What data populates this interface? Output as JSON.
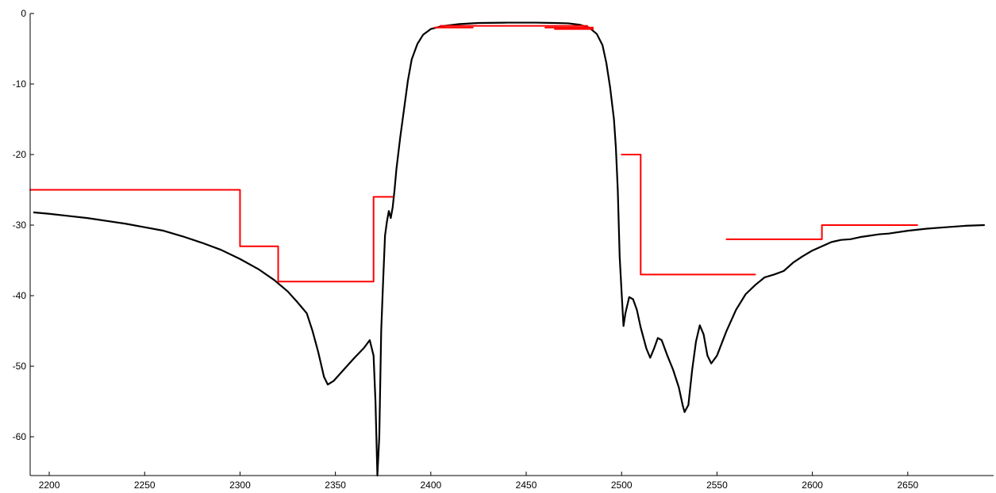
{
  "chart_data": {
    "type": "line",
    "title": "",
    "xlabel": "",
    "ylabel": "",
    "xlim": [
      2190,
      2695
    ],
    "ylim": [
      -65.5,
      0
    ],
    "grid": false,
    "x_ticks": [
      2200,
      2250,
      2300,
      2350,
      2400,
      2450,
      2500,
      2550,
      2600,
      2650
    ],
    "y_ticks": [
      0,
      -10,
      -20,
      -30,
      -40,
      -50,
      -60
    ],
    "x_tick_labels": [
      "2200",
      "2250",
      "2300",
      "2350",
      "2400",
      "2450",
      "2500",
      "2550",
      "2600",
      "2650"
    ],
    "y_tick_labels": [
      "0",
      "-10",
      "-20",
      "-30",
      "-40",
      "-50",
      "-60"
    ],
    "series": [
      {
        "color": "#000000",
        "points": [
          [
            2192,
            -28.2
          ],
          [
            2200,
            -28.4
          ],
          [
            2210,
            -28.7
          ],
          [
            2220,
            -29.0
          ],
          [
            2230,
            -29.4
          ],
          [
            2240,
            -29.8
          ],
          [
            2250,
            -30.3
          ],
          [
            2260,
            -30.8
          ],
          [
            2270,
            -31.6
          ],
          [
            2280,
            -32.5
          ],
          [
            2290,
            -33.5
          ],
          [
            2300,
            -34.8
          ],
          [
            2310,
            -36.3
          ],
          [
            2318,
            -37.8
          ],
          [
            2325,
            -39.4
          ],
          [
            2330,
            -40.9
          ],
          [
            2335,
            -42.5
          ],
          [
            2338,
            -45.0
          ],
          [
            2341,
            -48.0
          ],
          [
            2344,
            -51.5
          ],
          [
            2346,
            -52.6
          ],
          [
            2349,
            -52.1
          ],
          [
            2352,
            -51.2
          ],
          [
            2356,
            -50.0
          ],
          [
            2360,
            -48.8
          ],
          [
            2365,
            -47.4
          ],
          [
            2368,
            -46.3
          ],
          [
            2370,
            -48.5
          ],
          [
            2371,
            -55.0
          ],
          [
            2372,
            -65.5
          ],
          [
            2373,
            -60.0
          ],
          [
            2374,
            -45.0
          ],
          [
            2375,
            -38.0
          ],
          [
            2376,
            -31.5
          ],
          [
            2377,
            -29.5
          ],
          [
            2378,
            -28.0
          ],
          [
            2379,
            -29.0
          ],
          [
            2380,
            -27.5
          ],
          [
            2381,
            -25.0
          ],
          [
            2382,
            -22.0
          ],
          [
            2384,
            -17.5
          ],
          [
            2386,
            -13.5
          ],
          [
            2388,
            -9.5
          ],
          [
            2390,
            -6.5
          ],
          [
            2393,
            -4.3
          ],
          [
            2396,
            -3.0
          ],
          [
            2400,
            -2.2
          ],
          [
            2406,
            -1.8
          ],
          [
            2415,
            -1.5
          ],
          [
            2425,
            -1.35
          ],
          [
            2440,
            -1.3
          ],
          [
            2455,
            -1.3
          ],
          [
            2465,
            -1.35
          ],
          [
            2472,
            -1.4
          ],
          [
            2478,
            -1.6
          ],
          [
            2483,
            -2.0
          ],
          [
            2487,
            -2.9
          ],
          [
            2490,
            -4.5
          ],
          [
            2492,
            -7.0
          ],
          [
            2494,
            -10.5
          ],
          [
            2496,
            -15.0
          ],
          [
            2497,
            -19.0
          ],
          [
            2498,
            -25.0
          ],
          [
            2499,
            -34.5
          ],
          [
            2500,
            -39.5
          ],
          [
            2501,
            -44.3
          ],
          [
            2502,
            -42.5
          ],
          [
            2504,
            -40.2
          ],
          [
            2506,
            -40.5
          ],
          [
            2508,
            -42.0
          ],
          [
            2510,
            -44.5
          ],
          [
            2513,
            -47.5
          ],
          [
            2515,
            -48.8
          ],
          [
            2517,
            -47.5
          ],
          [
            2519,
            -46.0
          ],
          [
            2521,
            -46.3
          ],
          [
            2524,
            -48.5
          ],
          [
            2527,
            -50.5
          ],
          [
            2530,
            -53.0
          ],
          [
            2532,
            -55.5
          ],
          [
            2533,
            -56.5
          ],
          [
            2535,
            -55.5
          ],
          [
            2537,
            -50.5
          ],
          [
            2539,
            -46.5
          ],
          [
            2541,
            -44.2
          ],
          [
            2543,
            -45.5
          ],
          [
            2545,
            -48.5
          ],
          [
            2547,
            -49.6
          ],
          [
            2550,
            -48.5
          ],
          [
            2555,
            -45.0
          ],
          [
            2560,
            -42.0
          ],
          [
            2565,
            -39.8
          ],
          [
            2570,
            -38.5
          ],
          [
            2575,
            -37.4
          ],
          [
            2580,
            -37.0
          ],
          [
            2585,
            -36.5
          ],
          [
            2590,
            -35.3
          ],
          [
            2595,
            -34.4
          ],
          [
            2600,
            -33.6
          ],
          [
            2605,
            -33.0
          ],
          [
            2610,
            -32.4
          ],
          [
            2615,
            -32.1
          ],
          [
            2620,
            -32.0
          ],
          [
            2625,
            -31.7
          ],
          [
            2630,
            -31.5
          ],
          [
            2635,
            -31.3
          ],
          [
            2640,
            -31.2
          ],
          [
            2650,
            -30.8
          ],
          [
            2660,
            -30.5
          ],
          [
            2670,
            -30.3
          ],
          [
            2680,
            -30.1
          ],
          [
            2690,
            -30.0
          ]
        ]
      },
      {
        "color": "#ff0000",
        "points": [
          [
            2190,
            -25
          ],
          [
            2300,
            -25
          ],
          [
            2300,
            -33
          ],
          [
            2320,
            -33
          ],
          [
            2320,
            -38
          ],
          [
            2370,
            -38
          ],
          [
            2370,
            -26
          ],
          [
            2380,
            -26
          ]
        ]
      },
      {
        "color": "#ff0000",
        "points": [
          [
            2402,
            -2.0
          ],
          [
            2422,
            -2.0
          ]
        ]
      },
      {
        "color": "#ff0000",
        "points": [
          [
            2405,
            -1.75
          ],
          [
            2482,
            -1.75
          ]
        ]
      },
      {
        "color": "#ff0000",
        "points": [
          [
            2460,
            -2.0
          ],
          [
            2485,
            -2.0
          ]
        ]
      },
      {
        "color": "#ff0000",
        "points": [
          [
            2465,
            -2.2
          ],
          [
            2485,
            -2.2
          ]
        ]
      },
      {
        "color": "#ff0000",
        "points": [
          [
            2500,
            -20
          ],
          [
            2510,
            -20
          ],
          [
            2510,
            -37
          ],
          [
            2570,
            -37
          ]
        ]
      },
      {
        "color": "#ff0000",
        "points": [
          [
            2555,
            -32
          ],
          [
            2605,
            -32
          ],
          [
            2605,
            -30
          ],
          [
            2655,
            -30
          ]
        ]
      }
    ]
  }
}
